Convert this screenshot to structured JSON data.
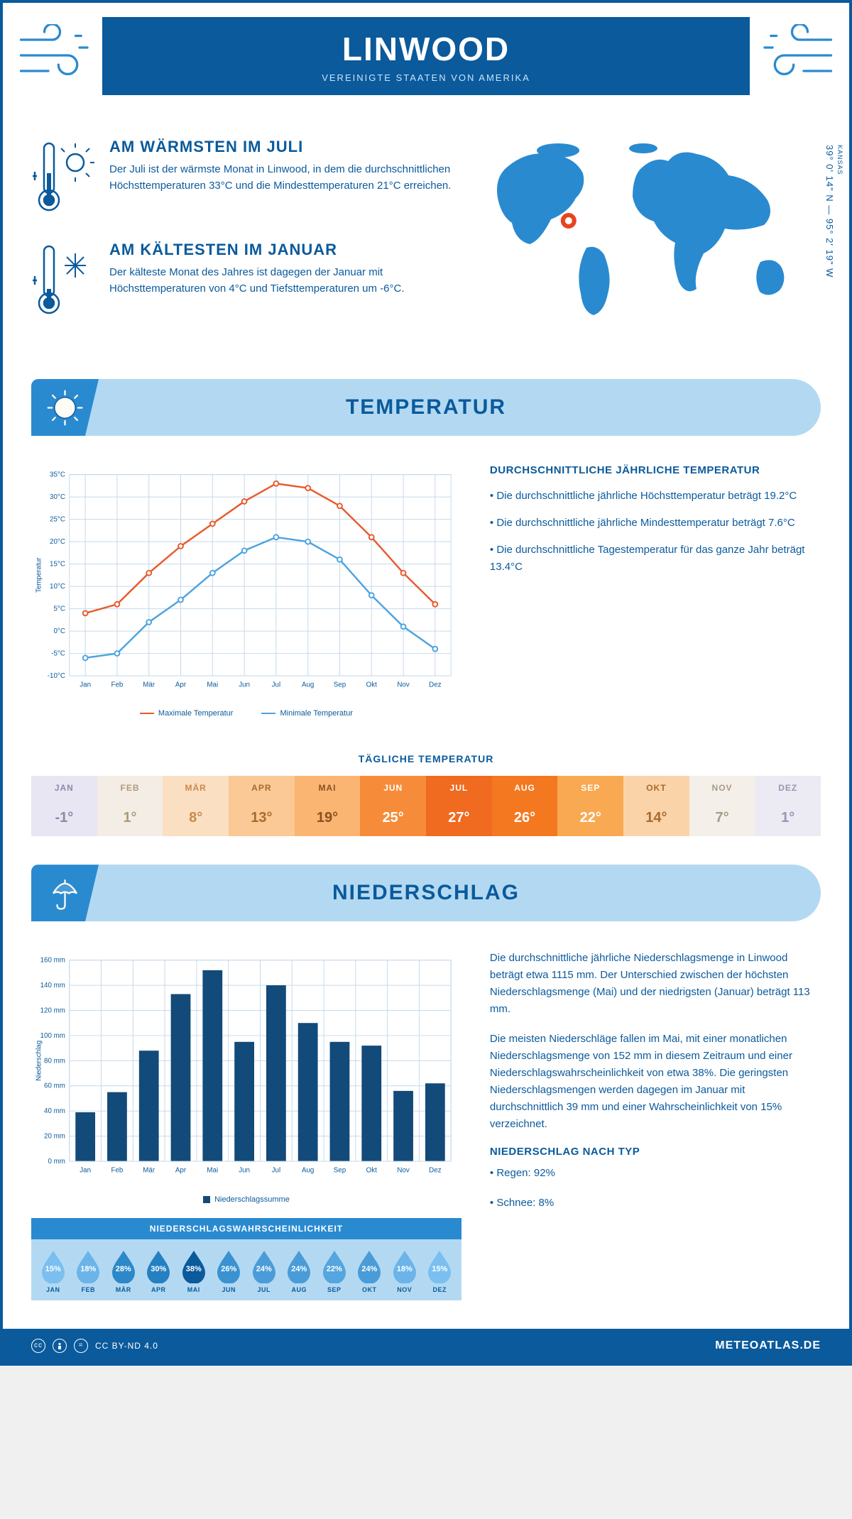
{
  "header": {
    "title": "LINWOOD",
    "subtitle": "VEREINIGTE STAATEN VON AMERIKA"
  },
  "intro": {
    "warm": {
      "title": "AM WÄRMSTEN IM JULI",
      "text": "Der Juli ist der wärmste Monat in Linwood, in dem die durchschnittlichen Höchsttemperaturen 33°C und die Mindesttemperaturen 21°C erreichen."
    },
    "cold": {
      "title": "AM KÄLTESTEN IM JANUAR",
      "text": "Der kälteste Monat des Jahres ist dagegen der Januar mit Höchsttemperaturen von 4°C und Tiefsttemperaturen um -6°C."
    },
    "state": "KANSAS",
    "coords": "39° 0' 14\" N — 95° 2' 19\" W",
    "marker": {
      "cx_pct": 26,
      "cy_pct": 45
    }
  },
  "sections": {
    "temperature": "TEMPERATUR",
    "precipitation": "NIEDERSCHLAG"
  },
  "months_short": [
    "Jan",
    "Feb",
    "Mär",
    "Apr",
    "Mai",
    "Jun",
    "Jul",
    "Aug",
    "Sep",
    "Okt",
    "Nov",
    "Dez"
  ],
  "months_up": [
    "JAN",
    "FEB",
    "MÄR",
    "APR",
    "MAI",
    "JUN",
    "JUL",
    "AUG",
    "SEP",
    "OKT",
    "NOV",
    "DEZ"
  ],
  "temp_chart": {
    "type": "line",
    "y_label": "Temperatur",
    "y_min": -10,
    "y_max": 35,
    "y_step": 5,
    "unit": "°C",
    "series": {
      "max": {
        "label": "Maximale Temperatur",
        "color": "#e85a2c",
        "values": [
          4,
          6,
          13,
          19,
          24,
          29,
          33,
          32,
          28,
          21,
          13,
          6
        ]
      },
      "min": {
        "label": "Minimale Temperatur",
        "color": "#4da3e0",
        "values": [
          -6,
          -5,
          2,
          7,
          13,
          18,
          21,
          20,
          16,
          8,
          1,
          -4
        ]
      }
    },
    "grid_color": "#c5d9eb",
    "background_color": "#ffffff"
  },
  "temp_info": {
    "title": "DURCHSCHNITTLICHE JÄHRLICHE TEMPERATUR",
    "b1": "• Die durchschnittliche jährliche Höchsttemperatur beträgt 19.2°C",
    "b2": "• Die durchschnittliche jährliche Mindesttemperatur beträgt 7.6°C",
    "b3": "• Die durchschnittliche Tagestemperatur für das ganze Jahr beträgt 13.4°C"
  },
  "daily_temp": {
    "title": "TÄGLICHE TEMPERATUR",
    "values": [
      "-1°",
      "1°",
      "8°",
      "13°",
      "19°",
      "25°",
      "27°",
      "26°",
      "22°",
      "14°",
      "7°",
      "1°"
    ],
    "bg": [
      "#e8e6f2",
      "#f3ede6",
      "#fbdfc2",
      "#fbc996",
      "#fbb572",
      "#f68c3a",
      "#f06a1f",
      "#f3781f",
      "#f9a951",
      "#fbd3a8",
      "#f4efe8",
      "#eceaf2"
    ],
    "fg": [
      "#8a8aa8",
      "#b09a7a",
      "#c98a4a",
      "#a86a2c",
      "#8a5020",
      "#ffffff",
      "#ffffff",
      "#ffffff",
      "#ffffff",
      "#a86a2c",
      "#a89a88",
      "#9a96b0"
    ]
  },
  "precip_chart": {
    "type": "bar",
    "y_label": "Niederschlag",
    "y_min": 0,
    "y_max": 160,
    "y_step": 20,
    "unit": " mm",
    "values": [
      39,
      55,
      88,
      133,
      152,
      95,
      140,
      110,
      95,
      92,
      56,
      62
    ],
    "bar_color": "#124a7a",
    "grid_color": "#c5d9eb",
    "legend": "Niederschlagssumme"
  },
  "precip_info": {
    "p1": "Die durchschnittliche jährliche Niederschlagsmenge in Linwood beträgt etwa 1115 mm. Der Unterschied zwischen der höchsten Niederschlagsmenge (Mai) und der niedrigsten (Januar) beträgt 113 mm.",
    "p2": "Die meisten Niederschläge fallen im Mai, mit einer monatlichen Niederschlagsmenge von 152 mm in diesem Zeitraum und einer Niederschlagswahrscheinlichkeit von etwa 38%. Die geringsten Niederschlagsmengen werden dagegen im Januar mit durchschnittlich 39 mm und einer Wahrscheinlichkeit von 15% verzeichnet.",
    "type_title": "NIEDERSCHLAG NACH TYP",
    "type_b1": "• Regen: 92%",
    "type_b2": "• Schnee: 8%"
  },
  "prob": {
    "title": "NIEDERSCHLAGSWAHRSCHEINLICHKEIT",
    "values": [
      "15%",
      "18%",
      "28%",
      "30%",
      "38%",
      "26%",
      "24%",
      "24%",
      "22%",
      "24%",
      "18%",
      "15%"
    ],
    "colors": [
      "#7abff0",
      "#6ab4ea",
      "#2c88c9",
      "#2580c2",
      "#0a5a9c",
      "#3a92d0",
      "#4a9cd8",
      "#4a9cd8",
      "#55a5de",
      "#4a9cd8",
      "#6ab4ea",
      "#7abff0"
    ]
  },
  "footer": {
    "license": "CC BY-ND 4.0",
    "site": "METEOATLAS.DE"
  }
}
